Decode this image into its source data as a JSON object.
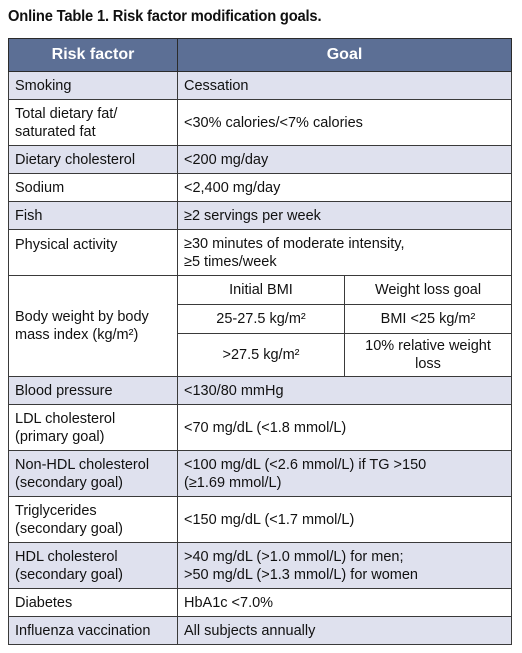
{
  "title": "Online Table 1. Risk factor modification goals.",
  "headers": {
    "risk_factor": "Risk factor",
    "goal": "Goal"
  },
  "rows": {
    "smoking": {
      "factor": "Smoking",
      "goal": "Cessation"
    },
    "dietary_fat": {
      "factor_line1": "Total dietary fat/",
      "factor_line2": "saturated fat",
      "goal": "<30% calories/<7% calories"
    },
    "dietary_cholesterol": {
      "factor": "Dietary cholesterol",
      "goal": "<200 mg/day"
    },
    "sodium": {
      "factor": "Sodium",
      "goal": "<2,400 mg/day"
    },
    "fish": {
      "factor": "Fish",
      "goal": "≥2 servings per week"
    },
    "physical_activity": {
      "factor": "Physical activity",
      "goal_line1": "≥30 minutes of moderate intensity,",
      "goal_line2": "≥5 times/week"
    },
    "body_weight": {
      "factor_line1": "Body weight by body",
      "factor_line2": "mass index (kg/m²)",
      "col1_header": "Initial BMI",
      "col2_header": "Weight loss goal",
      "sub1_bmi": "25-27.5 kg/m²",
      "sub1_goal": "BMI <25 kg/m²",
      "sub2_bmi": ">27.5 kg/m²",
      "sub2_goal": "10% relative weight loss"
    },
    "blood_pressure": {
      "factor": "Blood pressure",
      "goal": "<130/80 mmHg"
    },
    "ldl": {
      "factor_line1": "LDL cholesterol",
      "factor_line2": "(primary goal)",
      "goal": "<70 mg/dL (<1.8 mmol/L)"
    },
    "non_hdl": {
      "factor_line1": "Non-HDL cholesterol",
      "factor_line2": "(secondary goal)",
      "goal_line1": "<100 mg/dL (<2.6 mmol/L) if TG >150",
      "goal_line2": "(≥1.69 mmol/L)"
    },
    "triglycerides": {
      "factor_line1": "Triglycerides",
      "factor_line2": "(secondary goal)",
      "goal": "<150 mg/dL (<1.7 mmol/L)"
    },
    "hdl": {
      "factor_line1": "HDL cholesterol",
      "factor_line2": "(secondary goal)",
      "goal_line1": ">40 mg/dL (>1.0 mmol/L) for men;",
      "goal_line2": ">50 mg/dL (>1.3 mmol/L) for women"
    },
    "diabetes": {
      "factor": "Diabetes",
      "goal": "HbA1c <7.0%"
    },
    "influenza": {
      "factor": "Influenza vaccination",
      "goal": "All subjects annually"
    }
  },
  "colors": {
    "header_bg": "#5c6f95",
    "header_text": "#ffffff",
    "band_shaded": "#dfe1ee",
    "band_plain": "#ffffff",
    "border": "#2b2b2b"
  }
}
